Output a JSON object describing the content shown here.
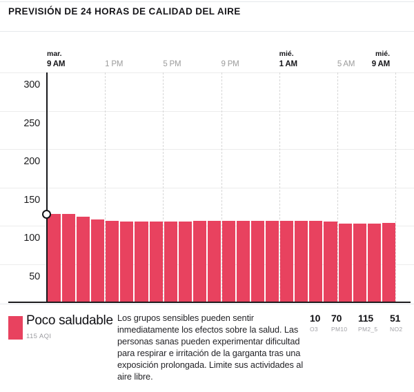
{
  "header": {
    "title": "PREVISIÓN DE 24 HORAS DE CALIDAD DEL AIRE"
  },
  "chart_data": {
    "type": "bar",
    "title": "Previsión de 24 horas de calidad del aire",
    "ylabel": "AQI",
    "ylim": [
      0,
      300
    ],
    "y_ticks": [
      300,
      250,
      200,
      150,
      100,
      50
    ],
    "x_ticks": [
      {
        "day": "mar.",
        "hour": "9 AM",
        "emphasis": true
      },
      {
        "day": "",
        "hour": "1 PM",
        "emphasis": false
      },
      {
        "day": "",
        "hour": "5 PM",
        "emphasis": false
      },
      {
        "day": "",
        "hour": "9 PM",
        "emphasis": false
      },
      {
        "day": "mié.",
        "hour": "1 AM",
        "emphasis": true
      },
      {
        "day": "",
        "hour": "5 AM",
        "emphasis": false
      },
      {
        "day": "mié.",
        "hour": "9 AM",
        "emphasis": true
      }
    ],
    "values": [
      115,
      115,
      112,
      108,
      106,
      105,
      105,
      105,
      105,
      105,
      106,
      106,
      106,
      106,
      106,
      106,
      106,
      106,
      106,
      105,
      103,
      103,
      103,
      104
    ],
    "bar_color": "#e8425f",
    "grid": true,
    "current_marker": {
      "index": 0,
      "value": 115
    }
  },
  "legend": {
    "category_label": "Poco saludable",
    "aqi_label": "115 AQI",
    "swatch_color": "#e8425f",
    "description": "Los grupos sensibles pueden sentir inmediatamente los efectos sobre la salud. Las personas sanas pueden experimentar dificultad para respirar e irritación de la garganta tras una exposición prolongada. Limite sus actividades al aire libre.",
    "pollutants": [
      {
        "value": "10",
        "label": "O3"
      },
      {
        "value": "70",
        "label": "PM10"
      },
      {
        "value": "115",
        "label": "PM2_5"
      },
      {
        "value": "51",
        "label": "NO2"
      }
    ]
  }
}
